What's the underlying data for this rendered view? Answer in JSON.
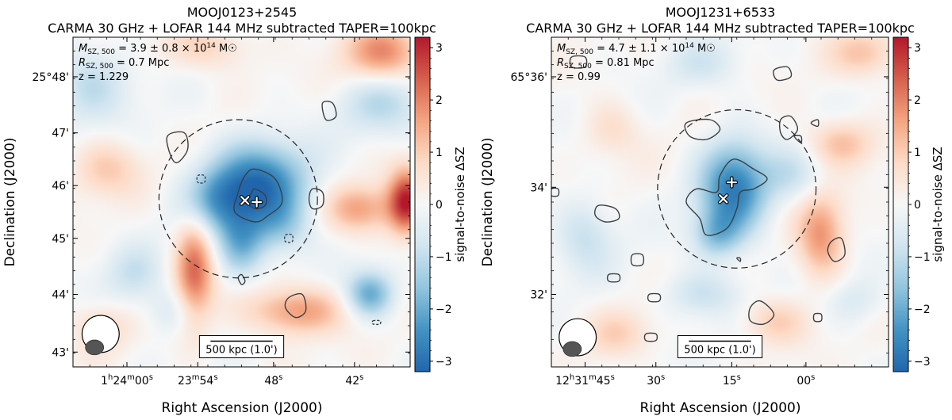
{
  "chart_data": [
    {
      "type": "heatmap",
      "name": "MOOJ0123+2545",
      "title": "MOOJ0123+2545",
      "subtitle": "CARMA 30 GHz + LOFAR 144 MHz subtracted TAPER=100kpc",
      "xlabel": "Right Ascension (J2000)",
      "ylabel": "Declination (J2000)",
      "x_ticks": [
        {
          "sup_h": "h",
          "sup_m": "m",
          "sup_s": "s",
          "base_a": "1",
          "base_b": "24",
          "base_c": "00"
        },
        {
          "sup_m": "m",
          "sup_s": "s",
          "base_b": "23",
          "base_c": "54"
        },
        {
          "sup_s": "s",
          "base_c": "48"
        },
        {
          "sup_s": "s",
          "base_c": "42"
        }
      ],
      "y_ticks": [
        "25°48'",
        "47'",
        "46'",
        "45'",
        "44'",
        "43'"
      ],
      "annotations": {
        "mass_sym": "M",
        "mass_sub": "SZ, 500",
        "mass_val": " = 3.9 ± 0.8 × 10",
        "mass_exp": "14",
        "mass_unit": " M☉",
        "radius_sym": "R",
        "radius_sub": "SZ, 500",
        "radius_val": " = 0.7 Mpc",
        "z_text": "z = 1.229"
      },
      "scalebar_label": "500 kpc (1.0')",
      "colorbar": {
        "label": "signal-to-noise ΔSZ",
        "range": [
          -3.2,
          3.2
        ],
        "ticks": [
          "3",
          "2",
          "1",
          "0",
          "−1",
          "−2",
          "−3"
        ],
        "colormap": [
          "#2166ac",
          "#4393c3",
          "#92c5de",
          "#d1e5f0",
          "#f7f7f7",
          "#fddbc7",
          "#f4a582",
          "#d6604d",
          "#b2182b"
        ]
      },
      "image_range": [
        -3.2,
        3.2
      ],
      "blobs": [
        {
          "x": 0.55,
          "y": 0.45,
          "sx": 0.1,
          "sy": 0.09,
          "v": -2.9
        },
        {
          "x": 0.42,
          "y": 0.5,
          "sx": 0.07,
          "sy": 0.07,
          "v": -1.4
        },
        {
          "x": 0.5,
          "y": 0.63,
          "sx": 0.05,
          "sy": 0.07,
          "v": -1.6
        },
        {
          "x": 0.62,
          "y": 0.58,
          "sx": 0.06,
          "sy": 0.06,
          "v": -1.0
        },
        {
          "x": 0.36,
          "y": 0.71,
          "sx": 0.04,
          "sy": 0.12,
          "v": 2.2
        },
        {
          "x": 0.66,
          "y": 0.83,
          "sx": 0.1,
          "sy": 0.05,
          "v": 1.8
        },
        {
          "x": 0.99,
          "y": 0.5,
          "sx": 0.04,
          "sy": 0.07,
          "v": 3.0
        },
        {
          "x": 0.85,
          "y": 0.52,
          "sx": 0.07,
          "sy": 0.05,
          "v": 1.6
        },
        {
          "x": 0.92,
          "y": 0.05,
          "sx": 0.08,
          "sy": 0.06,
          "v": 1.9
        },
        {
          "x": 0.92,
          "y": 0.2,
          "sx": 0.09,
          "sy": 0.07,
          "v": -1.0
        },
        {
          "x": 0.05,
          "y": 0.14,
          "sx": 0.08,
          "sy": 0.08,
          "v": -1.0
        },
        {
          "x": 0.88,
          "y": 0.78,
          "sx": 0.05,
          "sy": 0.05,
          "v": -2.0
        },
        {
          "x": 0.4,
          "y": 0.03,
          "sx": 0.09,
          "sy": 0.05,
          "v": 0.9
        },
        {
          "x": 0.1,
          "y": 0.4,
          "sx": 0.07,
          "sy": 0.06,
          "v": 1.0
        },
        {
          "x": 0.18,
          "y": 0.72,
          "sx": 0.06,
          "sy": 0.06,
          "v": -0.8
        },
        {
          "x": 0.08,
          "y": 0.88,
          "sx": 0.06,
          "sy": 0.05,
          "v": 0.8
        },
        {
          "x": 0.3,
          "y": 0.83,
          "sx": 0.06,
          "sy": 0.05,
          "v": -0.7
        }
      ],
      "contours": [
        {
          "solid": true,
          "points": [
            [
              0.54,
              0.4
            ],
            [
              0.6,
              0.43
            ],
            [
              0.62,
              0.5
            ],
            [
              0.58,
              0.54
            ],
            [
              0.54,
              0.56
            ],
            [
              0.48,
              0.53
            ],
            [
              0.49,
              0.47
            ],
            [
              0.51,
              0.42
            ]
          ]
        },
        {
          "solid": true,
          "points": [
            [
              0.54,
              0.46
            ],
            [
              0.57,
              0.48
            ],
            [
              0.57,
              0.51
            ],
            [
              0.54,
              0.52
            ],
            [
              0.52,
              0.5
            ],
            [
              0.53,
              0.47
            ]
          ]
        },
        {
          "solid": true,
          "points": [
            [
              0.28,
              0.3
            ],
            [
              0.33,
              0.29
            ],
            [
              0.34,
              0.34
            ],
            [
              0.31,
              0.38
            ],
            [
              0.29,
              0.36
            ]
          ]
        },
        {
          "solid": true,
          "points": [
            [
              0.71,
              0.46
            ],
            [
              0.74,
              0.47
            ],
            [
              0.74,
              0.51
            ],
            [
              0.71,
              0.52
            ],
            [
              0.7,
              0.49
            ]
          ]
        },
        {
          "solid": true,
          "points": [
            [
              0.74,
              0.2
            ],
            [
              0.77,
              0.2
            ],
            [
              0.78,
              0.24
            ],
            [
              0.75,
              0.25
            ]
          ]
        },
        {
          "solid": true,
          "points": [
            [
              0.64,
              0.79
            ],
            [
              0.68,
              0.78
            ],
            [
              0.69,
              0.83
            ],
            [
              0.66,
              0.85
            ],
            [
              0.63,
              0.82
            ]
          ]
        },
        {
          "solid": true,
          "points": [
            [
              0.49,
              0.73
            ],
            [
              0.5,
              0.72
            ],
            [
              0.51,
              0.74
            ],
            [
              0.5,
              0.75
            ]
          ]
        },
        {
          "solid": false,
          "points": [
            [
              0.37,
              0.42
            ],
            [
              0.39,
              0.42
            ],
            [
              0.39,
              0.44
            ],
            [
              0.37,
              0.44
            ]
          ]
        },
        {
          "solid": false,
          "points": [
            [
              0.63,
              0.6
            ],
            [
              0.65,
              0.6
            ],
            [
              0.65,
              0.62
            ],
            [
              0.63,
              0.62
            ]
          ]
        },
        {
          "solid": false,
          "points": [
            [
              0.89,
              0.86
            ],
            [
              0.91,
              0.86
            ],
            [
              0.91,
              0.87
            ],
            [
              0.89,
              0.87
            ]
          ]
        }
      ],
      "circle": {
        "cx": 0.49,
        "cy": 0.49,
        "r": 0.235
      },
      "markers": [
        {
          "type": "x",
          "x": 0.51,
          "y": 0.495
        },
        {
          "type": "plus",
          "x": 0.545,
          "y": 0.5
        }
      ],
      "beam": {
        "cx": 0.082,
        "cy": 0.9,
        "rx": 0.055,
        "ry": 0.06,
        "core_dx": -0.018,
        "core_dy": 0.04,
        "core_rx": 0.027,
        "core_ry": 0.022
      }
    },
    {
      "type": "heatmap",
      "name": "MOOJ1231+6533",
      "title": "MOOJ1231+6533",
      "subtitle": "CARMA 30 GHz + LOFAR 144 MHz subtracted TAPER=100kpc",
      "xlabel": "Right Ascension (J2000)",
      "ylabel": "Declination (J2000)",
      "x_ticks": [
        {
          "sup_h": "h",
          "sup_m": "m",
          "sup_s": "s",
          "base_a": "12",
          "base_b": "31",
          "base_c": "45"
        },
        {
          "sup_s": "s",
          "base_c": "30"
        },
        {
          "sup_s": "s",
          "base_c": "15"
        },
        {
          "sup_s": "s",
          "base_c": "00"
        }
      ],
      "y_ticks": [
        "65°36'",
        "34'",
        "32'"
      ],
      "annotations": {
        "mass_sym": "M",
        "mass_sub": "SZ, 500",
        "mass_val": " = 4.7 ± 1.1 × 10",
        "mass_exp": "14",
        "mass_unit": " M☉",
        "radius_sym": "R",
        "radius_sub": "SZ, 500",
        "radius_val": " = 0.81 Mpc",
        "z_text": "z = 0.99"
      },
      "scalebar_label": "500 kpc (1.0')",
      "colorbar": {
        "label": "signal-to-noise ΔSZ",
        "range": [
          -3.2,
          3.2
        ],
        "ticks": [
          "3",
          "2",
          "1",
          "0",
          "−1",
          "−2",
          "−3"
        ],
        "colormap": [
          "#2166ac",
          "#4393c3",
          "#92c5de",
          "#d1e5f0",
          "#f7f7f7",
          "#fddbc7",
          "#f4a582",
          "#d6604d",
          "#b2182b"
        ]
      },
      "image_range": [
        -3.2,
        3.2
      ],
      "blobs": [
        {
          "x": 0.54,
          "y": 0.46,
          "sx": 0.07,
          "sy": 0.1,
          "v": -2.7
        },
        {
          "x": 0.49,
          "y": 0.6,
          "sx": 0.05,
          "sy": 0.05,
          "v": -1.3
        },
        {
          "x": 0.72,
          "y": 0.42,
          "sx": 0.07,
          "sy": 0.06,
          "v": -0.8
        },
        {
          "x": 0.8,
          "y": 0.6,
          "sx": 0.05,
          "sy": 0.09,
          "v": 1.8
        },
        {
          "x": 0.86,
          "y": 0.32,
          "sx": 0.07,
          "sy": 0.05,
          "v": 1.2
        },
        {
          "x": 0.93,
          "y": 0.05,
          "sx": 0.07,
          "sy": 0.05,
          "v": 1.1
        },
        {
          "x": 0.66,
          "y": 0.86,
          "sx": 0.07,
          "sy": 0.05,
          "v": 1.0
        },
        {
          "x": 0.45,
          "y": 0.78,
          "sx": 0.08,
          "sy": 0.05,
          "v": -0.9
        },
        {
          "x": 0.1,
          "y": 0.6,
          "sx": 0.06,
          "sy": 0.08,
          "v": -0.9
        },
        {
          "x": 0.18,
          "y": 0.28,
          "sx": 0.06,
          "sy": 0.06,
          "v": 0.7
        },
        {
          "x": 0.2,
          "y": 0.9,
          "sx": 0.07,
          "sy": 0.05,
          "v": 0.8
        },
        {
          "x": 0.9,
          "y": 0.8,
          "sx": 0.06,
          "sy": 0.05,
          "v": -0.6
        },
        {
          "x": 0.45,
          "y": 0.08,
          "sx": 0.08,
          "sy": 0.05,
          "v": -0.6
        }
      ],
      "contours": [
        {
          "solid": true,
          "points": [
            [
              0.54,
              0.37
            ],
            [
              0.6,
              0.4
            ],
            [
              0.64,
              0.43
            ],
            [
              0.6,
              0.46
            ],
            [
              0.56,
              0.47
            ],
            [
              0.55,
              0.52
            ],
            [
              0.52,
              0.58
            ],
            [
              0.46,
              0.6
            ],
            [
              0.44,
              0.55
            ],
            [
              0.4,
              0.5
            ],
            [
              0.43,
              0.46
            ],
            [
              0.49,
              0.47
            ],
            [
              0.5,
              0.42
            ]
          ]
        },
        {
          "solid": true,
          "points": [
            [
              0.4,
              0.26
            ],
            [
              0.47,
              0.25
            ],
            [
              0.5,
              0.28
            ],
            [
              0.46,
              0.31
            ],
            [
              0.41,
              0.3
            ]
          ]
        },
        {
          "solid": true,
          "points": [
            [
              0.68,
              0.25
            ],
            [
              0.71,
              0.24
            ],
            [
              0.73,
              0.28
            ],
            [
              0.7,
              0.31
            ],
            [
              0.68,
              0.29
            ]
          ]
        },
        {
          "solid": true,
          "points": [
            [
              0.83,
              0.62
            ],
            [
              0.86,
              0.61
            ],
            [
              0.87,
              0.66
            ],
            [
              0.84,
              0.68
            ],
            [
              0.82,
              0.65
            ]
          ]
        },
        {
          "solid": true,
          "points": [
            [
              0.14,
              0.51
            ],
            [
              0.19,
              0.52
            ],
            [
              0.2,
              0.55
            ],
            [
              0.16,
              0.56
            ],
            [
              0.13,
              0.54
            ]
          ]
        },
        {
          "solid": true,
          "points": [
            [
              0.24,
              0.66
            ],
            [
              0.27,
              0.66
            ],
            [
              0.27,
              0.69
            ],
            [
              0.24,
              0.69
            ]
          ]
        },
        {
          "solid": true,
          "points": [
            [
              0.17,
              0.72
            ],
            [
              0.2,
              0.72
            ],
            [
              0.2,
              0.74
            ],
            [
              0.17,
              0.74
            ]
          ]
        },
        {
          "solid": true,
          "points": [
            [
              0.06,
              0.06
            ],
            [
              0.1,
              0.06
            ],
            [
              0.1,
              0.09
            ],
            [
              0.06,
              0.09
            ]
          ]
        },
        {
          "solid": true,
          "points": [
            [
              0.66,
              0.1
            ],
            [
              0.7,
              0.09
            ],
            [
              0.71,
              0.12
            ],
            [
              0.67,
              0.13
            ]
          ]
        },
        {
          "solid": true,
          "points": [
            [
              0.77,
              0.26
            ],
            [
              0.79,
              0.25
            ],
            [
              0.79,
              0.27
            ]
          ]
        },
        {
          "solid": true,
          "points": [
            [
              0.72,
              0.3
            ],
            [
              0.74,
              0.3
            ],
            [
              0.74,
              0.32
            ]
          ]
        },
        {
          "solid": true,
          "points": [
            [
              0.29,
              0.78
            ],
            [
              0.32,
              0.78
            ],
            [
              0.32,
              0.8
            ],
            [
              0.29,
              0.8
            ]
          ]
        },
        {
          "solid": true,
          "points": [
            [
              0.59,
              0.82
            ],
            [
              0.62,
              0.8
            ],
            [
              0.66,
              0.84
            ],
            [
              0.63,
              0.87
            ],
            [
              0.59,
              0.86
            ]
          ]
        },
        {
          "solid": true,
          "points": [
            [
              0.78,
              0.84
            ],
            [
              0.8,
              0.84
            ],
            [
              0.8,
              0.86
            ],
            [
              0.78,
              0.86
            ]
          ]
        },
        {
          "solid": true,
          "points": [
            [
              0.28,
              0.9
            ],
            [
              0.31,
              0.9
            ],
            [
              0.31,
              0.92
            ],
            [
              0.28,
              0.92
            ]
          ]
        },
        {
          "solid": true,
          "points": [
            [
              0.0,
              0.46
            ],
            [
              0.02,
              0.46
            ],
            [
              0.02,
              0.48
            ],
            [
              0.0,
              0.48
            ]
          ]
        },
        {
          "solid": true,
          "points": [
            [
              0.55,
              0.67
            ],
            [
              0.56,
              0.67
            ],
            [
              0.56,
              0.68
            ]
          ]
        }
      ],
      "circle": {
        "cx": 0.55,
        "cy": 0.46,
        "r": 0.235
      },
      "markers": [
        {
          "type": "plus",
          "x": 0.535,
          "y": 0.44
        },
        {
          "type": "x",
          "x": 0.51,
          "y": 0.49
        }
      ],
      "beam": {
        "cx": 0.078,
        "cy": 0.91,
        "rx": 0.055,
        "ry": 0.06,
        "core_dx": -0.016,
        "core_dy": 0.035,
        "core_rx": 0.027,
        "core_ry": 0.022
      }
    }
  ]
}
